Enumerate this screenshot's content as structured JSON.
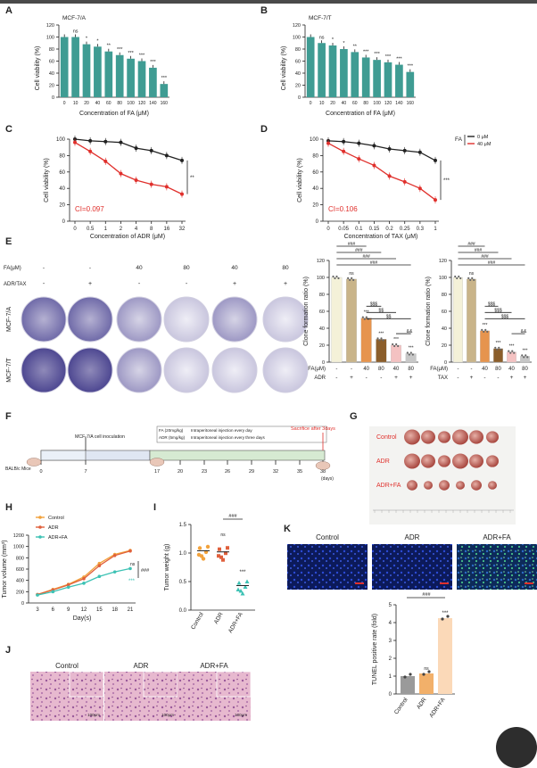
{
  "figure": {
    "panel_letters": [
      "A",
      "B",
      "C",
      "D",
      "E",
      "F",
      "G",
      "H",
      "I",
      "J",
      "K"
    ]
  },
  "panel_A": {
    "cell_line": "MCF-7/A",
    "ylabel": "Cell viability (%)",
    "xlabel": "Concentration of FA (μM)",
    "yticks": [
      "0",
      "20",
      "40",
      "60",
      "80",
      "100",
      "120"
    ],
    "bar_color": "#3f9c93",
    "categories": [
      "0",
      "10",
      "20",
      "40",
      "60",
      "80",
      "100",
      "120",
      "140",
      "160"
    ],
    "values": [
      100,
      100,
      88,
      84,
      76,
      70,
      64,
      60,
      49,
      22
    ],
    "sig": [
      "",
      "ns",
      "*",
      "*",
      "**",
      "***",
      "***",
      "***",
      "***",
      "***"
    ]
  },
  "panel_B": {
    "cell_line": "MCF-7/T",
    "ylabel": "Cell viability (%)",
    "xlabel": "Concentration of FA (μM)",
    "yticks": [
      "0",
      "20",
      "40",
      "60",
      "80",
      "100",
      "120"
    ],
    "bar_color": "#3f9c93",
    "categories": [
      "0",
      "10",
      "20",
      "40",
      "60",
      "80",
      "100",
      "120",
      "140",
      "160"
    ],
    "values": [
      100,
      90,
      86,
      80,
      75,
      66,
      62,
      58,
      54,
      42
    ],
    "sig": [
      "",
      "ns",
      "*",
      "*",
      "**",
      "***",
      "***",
      "***",
      "***",
      "***"
    ]
  },
  "panel_C": {
    "ylabel": "Cell viability (%)",
    "xlabel": "Concentration of ADR (μM)",
    "yticks": [
      "0",
      "20",
      "40",
      "60",
      "80",
      "100"
    ],
    "xticks": [
      "0",
      "0.5",
      "1",
      "2",
      "4",
      "8",
      "16",
      "32"
    ],
    "ci": "CI=0.097",
    "sig": "**",
    "series": [
      {
        "color": "#222222",
        "values": [
          100,
          98,
          97,
          96,
          89,
          86,
          80,
          74
        ]
      },
      {
        "color": "#e0302c",
        "values": [
          96,
          85,
          73,
          58,
          50,
          45,
          42,
          33
        ]
      }
    ]
  },
  "panel_D": {
    "ylabel": "Cell viability (%)",
    "xlabel": "Concentration of TAX (μM)",
    "yticks": [
      "0",
      "20",
      "40",
      "60",
      "80",
      "100"
    ],
    "xticks": [
      "0",
      "0.05",
      "0.1",
      "0.15",
      "0.2",
      "0.25",
      "0.3",
      "1"
    ],
    "ci": "CI=0.106",
    "sig": "***",
    "legend_title": "FA",
    "legend": [
      "0 μM",
      "40 μM"
    ],
    "series": [
      {
        "color": "#222222",
        "values": [
          98,
          97,
          95,
          92,
          88,
          86,
          84,
          74
        ]
      },
      {
        "color": "#e0302c",
        "values": [
          95,
          85,
          76,
          68,
          55,
          48,
          40,
          26
        ]
      }
    ]
  },
  "panel_E": {
    "row_labels": [
      "FA(μM)",
      "ADR/TAX"
    ],
    "fa_values": [
      "-",
      "-",
      "40",
      "80",
      "40",
      "80"
    ],
    "drug_values": [
      "-",
      "+",
      "-",
      "-",
      "+",
      "+"
    ],
    "cell_lines": [
      "MCF-7/A",
      "MCF-7/T"
    ],
    "bar_ylabel": "Clone formation ratio (%)",
    "yticks": [
      "0",
      "20",
      "40",
      "60",
      "80",
      "100",
      "120"
    ],
    "bar_colors": [
      "#f4f1d8",
      "#c9b489",
      "#e6944e",
      "#8b5e2b",
      "#f4c2c2",
      "#c7c7c7"
    ],
    "chart_left": {
      "values": [
        100,
        98,
        52,
        27,
        20,
        10
      ],
      "fa_row": [
        "-",
        "-",
        "40",
        "80",
        "40",
        "80"
      ],
      "drug_row": [
        "-",
        "+",
        "-",
        "-",
        "+",
        "+"
      ],
      "fa_label": "FA(μM)",
      "drug_label": "ADR",
      "sig_top": [
        "###",
        "###",
        "###",
        "###"
      ],
      "sig_mid": [
        "$$$",
        "$$",
        "$$"
      ],
      "sig_low": "&&",
      "bar_sig": [
        "",
        "ns",
        "***",
        "***",
        "***",
        "***"
      ]
    },
    "chart_right": {
      "values": [
        100,
        98,
        37,
        16,
        12,
        7
      ],
      "fa_row": [
        "-",
        "-",
        "40",
        "80",
        "40",
        "80"
      ],
      "drug_row": [
        "-",
        "+",
        "-",
        "-",
        "+",
        "+"
      ],
      "fa_label": "FA(μM)",
      "drug_label": "TAX",
      "sig_top": [
        "###",
        "###",
        "###",
        "###"
      ],
      "sig_mid": [
        "$$$",
        "$$$",
        "$$$"
      ],
      "sig_low": "&&",
      "bar_sig": [
        "",
        "ns",
        "***",
        "***",
        "***",
        "***"
      ]
    }
  },
  "panel_F": {
    "inoculation": "MCF-7/A cell inoculation",
    "fa_dose": "FA (20mg/kg)",
    "fa_route": "Intraperitoneal injection every day",
    "adr_dose": "ADR (5mg/kg)",
    "adr_route": "Intraperitoneal injection every three days",
    "sacrifice": "Sacrifice after 3days",
    "mice": "BALB/c Mice",
    "ticks": [
      "0",
      "7",
      "17",
      "20",
      "23",
      "26",
      "29",
      "32",
      "35",
      "38"
    ],
    "unit": "(days)"
  },
  "panel_G": {
    "groups": [
      "Control",
      "ADR",
      "ADR+FA"
    ]
  },
  "panel_H": {
    "ylabel": "Tumor volume (mm³)",
    "xlabel": "Day(s)",
    "yticks": [
      "0",
      "200",
      "400",
      "600",
      "800",
      "1000",
      "1200"
    ],
    "xticks": [
      "3",
      "6",
      "9",
      "12",
      "15",
      "18",
      "21"
    ],
    "legend": [
      "Control",
      "ADR",
      "ADR+FA"
    ],
    "sig": "###",
    "sig_adr": "ns",
    "sig_fa": "***",
    "series": [
      {
        "color": "#f2a23c",
        "values": [
          150,
          240,
          330,
          460,
          700,
          860,
          930
        ]
      },
      {
        "color": "#e0603c",
        "values": [
          150,
          230,
          320,
          430,
          660,
          840,
          920
        ]
      },
      {
        "color": "#3dc2b4",
        "values": [
          140,
          200,
          280,
          350,
          470,
          550,
          610
        ]
      }
    ]
  },
  "panel_I": {
    "ylabel": "Tumor weight (g)",
    "yticks": [
      "0.0",
      "0.5",
      "1.0",
      "1.5"
    ],
    "groups": [
      "Control",
      "ADR",
      "ADR+FA"
    ],
    "means": [
      1.04,
      1.02,
      0.43
    ],
    "colors": [
      "#f2a23c",
      "#e0603c",
      "#3dc2b4"
    ],
    "sig": "###",
    "sig_adr": "ns",
    "sig_fa": "***"
  },
  "panel_J": {
    "groups": [
      "Control",
      "ADR",
      "ADR+FA"
    ],
    "scale": "100μm"
  },
  "panel_K": {
    "groups": [
      "Control",
      "ADR",
      "ADR+FA"
    ],
    "ylabel": "TUNEL positive rate (fold)",
    "yticks": [
      "0",
      "1",
      "2",
      "3",
      "4",
      "5"
    ],
    "categories": [
      "Control",
      "ADR",
      "ADR+FA"
    ],
    "values": [
      1.0,
      1.15,
      4.25
    ],
    "colors": [
      "#9a9a9a",
      "#f2b06a",
      "#fbd9b8"
    ],
    "sig": "###",
    "sig_adr": "ns",
    "sig_fa": "***"
  },
  "chart_data": [
    {
      "type": "bar",
      "categories": [
        "0",
        "10",
        "20",
        "40",
        "60",
        "80",
        "100",
        "120",
        "140",
        "160"
      ],
      "values": [
        100,
        100,
        88,
        84,
        76,
        70,
        64,
        60,
        49,
        22
      ],
      "xlabel": "Concentration of FA (μM)",
      "ylabel": "Cell viability (%)",
      "ylim": [
        0,
        120
      ]
    },
    {
      "type": "bar",
      "categories": [
        "0",
        "10",
        "20",
        "40",
        "60",
        "80",
        "100",
        "120",
        "140",
        "160"
      ],
      "values": [
        100,
        90,
        86,
        80,
        75,
        66,
        62,
        58,
        54,
        42
      ],
      "xlabel": "Concentration of FA (μM)",
      "ylabel": "Cell viability (%)",
      "ylim": [
        0,
        120
      ]
    },
    {
      "type": "line",
      "categories": [
        "0",
        "0.5",
        "1",
        "2",
        "4",
        "8",
        "16",
        "32"
      ],
      "series": [
        {
          "values": [
            100,
            98,
            97,
            96,
            89,
            86,
            80,
            74
          ]
        },
        {
          "values": [
            96,
            85,
            73,
            58,
            50,
            45,
            42,
            33
          ]
        }
      ],
      "xlabel": "Concentration of ADR (μM)",
      "ylabel": "Cell viability (%)",
      "ylim": [
        0,
        100
      ]
    },
    {
      "type": "line",
      "categories": [
        "0",
        "0.05",
        "0.1",
        "0.15",
        "0.2",
        "0.25",
        "0.3",
        "1"
      ],
      "series": [
        {
          "name": "0 μM",
          "values": [
            98,
            97,
            95,
            92,
            88,
            86,
            84,
            74
          ]
        },
        {
          "name": "40 μM",
          "values": [
            95,
            85,
            76,
            68,
            55,
            48,
            40,
            26
          ]
        }
      ],
      "xlabel": "Concentration of TAX (μM)",
      "ylabel": "Cell viability (%)",
      "ylim": [
        0,
        100
      ]
    },
    {
      "type": "bar",
      "values": [
        100,
        98,
        52,
        27,
        20,
        10
      ],
      "ylabel": "Clone formation ratio (%)",
      "ylim": [
        0,
        120
      ]
    },
    {
      "type": "bar",
      "values": [
        100,
        98,
        37,
        16,
        12,
        7
      ],
      "ylabel": "Clone formation ratio (%)",
      "ylim": [
        0,
        120
      ]
    },
    {
      "type": "line",
      "categories": [
        "3",
        "6",
        "9",
        "12",
        "15",
        "18",
        "21"
      ],
      "series": [
        {
          "name": "Control",
          "values": [
            150,
            240,
            330,
            460,
            700,
            860,
            930
          ]
        },
        {
          "name": "ADR",
          "values": [
            150,
            230,
            320,
            430,
            660,
            840,
            920
          ]
        },
        {
          "name": "ADR+FA",
          "values": [
            140,
            200,
            280,
            350,
            470,
            550,
            610
          ]
        }
      ],
      "xlabel": "Day(s)",
      "ylabel": "Tumor volume (mm³)",
      "ylim": [
        0,
        1200
      ]
    },
    {
      "type": "scatter",
      "categories": [
        "Control",
        "ADR",
        "ADR+FA"
      ],
      "values": [
        1.04,
        1.02,
        0.43
      ],
      "ylabel": "Tumor weight (g)",
      "ylim": [
        0,
        1.5
      ]
    },
    {
      "type": "bar",
      "categories": [
        "Control",
        "ADR",
        "ADR+FA"
      ],
      "values": [
        1.0,
        1.15,
        4.25
      ],
      "ylabel": "TUNEL positive rate (fold)",
      "ylim": [
        0,
        5
      ]
    }
  ]
}
